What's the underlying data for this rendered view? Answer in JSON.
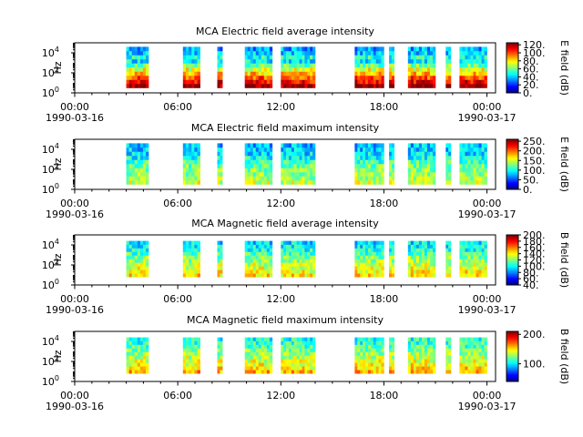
{
  "chart_data": [
    {
      "type": "heatmap",
      "title": "MCA  Electric field average intensity",
      "ylabel": "Hz",
      "yscale": "log",
      "ylim": [
        1,
        100000
      ],
      "yticks": [
        {
          "exp": "0",
          "v": 1
        },
        {
          "exp": "2",
          "v": 100
        },
        {
          "exp": "4",
          "v": 10000
        }
      ],
      "xlim": [
        0,
        24.5
      ],
      "xticks": [
        {
          "h": 0,
          "label": "00:00"
        },
        {
          "h": 6,
          "label": "06:00"
        },
        {
          "h": 12,
          "label": "12:00"
        },
        {
          "h": 18,
          "label": "18:00"
        },
        {
          "h": 24,
          "label": "00:00"
        }
      ],
      "xdates": [
        {
          "h": 0,
          "label": "1990-03-16"
        },
        {
          "h": 24,
          "label": "1990-03-17"
        }
      ],
      "colorbar": {
        "label": "E field (dB)",
        "min": 0,
        "max": 125,
        "ticks": [
          {
            "v": 0,
            "label": "0."
          },
          {
            "v": 20,
            "label": "20."
          },
          {
            "v": 40,
            "label": "40."
          },
          {
            "v": 60,
            "label": "60."
          },
          {
            "v": 80,
            "label": "80."
          },
          {
            "v": 100,
            "label": "100."
          },
          {
            "v": 120,
            "label": "120."
          }
        ]
      },
      "segments": [
        [
          3.0,
          4.3
        ],
        [
          6.3,
          7.3
        ],
        [
          8.3,
          8.6
        ],
        [
          9.9,
          11.5
        ],
        [
          12.0,
          14.0
        ],
        [
          16.3,
          18.0
        ],
        [
          18.3,
          18.6
        ],
        [
          19.4,
          21.0
        ],
        [
          21.6,
          21.9
        ],
        [
          22.4,
          24.0
        ]
      ],
      "freq_range": [
        0.5,
        4.6
      ],
      "level_profile": [
        125,
        110,
        100,
        85,
        75,
        60,
        45,
        50,
        40,
        35
      ]
    },
    {
      "type": "heatmap",
      "title": "MCA  Electric field maximum intensity",
      "ylabel": "Hz",
      "yscale": "log",
      "ylim": [
        1,
        100000
      ],
      "yticks": [
        {
          "exp": "0",
          "v": 1
        },
        {
          "exp": "2",
          "v": 100
        },
        {
          "exp": "4",
          "v": 10000
        }
      ],
      "xlim": [
        0,
        24.5
      ],
      "xticks": [
        {
          "h": 0,
          "label": "00:00"
        },
        {
          "h": 6,
          "label": "06:00"
        },
        {
          "h": 12,
          "label": "12:00"
        },
        {
          "h": 18,
          "label": "18:00"
        },
        {
          "h": 24,
          "label": "00:00"
        }
      ],
      "xdates": [
        {
          "h": 0,
          "label": "1990-03-16"
        },
        {
          "h": 24,
          "label": "1990-03-17"
        }
      ],
      "colorbar": {
        "label": "E field (dB)",
        "min": 0,
        "max": 260,
        "ticks": [
          {
            "v": 0,
            "label": "0."
          },
          {
            "v": 50,
            "label": "50."
          },
          {
            "v": 100,
            "label": "100."
          },
          {
            "v": 150,
            "label": "150."
          },
          {
            "v": 200,
            "label": "200."
          },
          {
            "v": 250,
            "label": "250."
          }
        ]
      },
      "segments": [
        [
          3.0,
          4.3
        ],
        [
          6.3,
          7.3
        ],
        [
          8.3,
          8.6
        ],
        [
          9.9,
          11.5
        ],
        [
          12.0,
          14.0
        ],
        [
          16.3,
          18.0
        ],
        [
          18.3,
          18.6
        ],
        [
          19.4,
          21.0
        ],
        [
          21.6,
          21.9
        ],
        [
          22.4,
          24.0
        ]
      ],
      "freq_range": [
        0.5,
        4.6
      ],
      "level_profile": [
        150,
        140,
        135,
        130,
        125,
        115,
        100,
        90,
        85,
        80
      ]
    },
    {
      "type": "heatmap",
      "title": "MCA  Magnetic field average intensity",
      "ylabel": "Hz",
      "yscale": "log",
      "ylim": [
        1,
        100000
      ],
      "yticks": [
        {
          "exp": "0",
          "v": 1
        },
        {
          "exp": "2",
          "v": 100
        },
        {
          "exp": "4",
          "v": 10000
        }
      ],
      "xlim": [
        0,
        24.5
      ],
      "xticks": [
        {
          "h": 0,
          "label": "00:00"
        },
        {
          "h": 6,
          "label": "06:00"
        },
        {
          "h": 12,
          "label": "12:00"
        },
        {
          "h": 18,
          "label": "18:00"
        },
        {
          "h": 24,
          "label": "00:00"
        }
      ],
      "xdates": [
        {
          "h": 0,
          "label": "1990-03-16"
        },
        {
          "h": 24,
          "label": "1990-03-17"
        }
      ],
      "colorbar": {
        "label": "B field (dB)",
        "min": 40,
        "max": 200,
        "ticks": [
          {
            "v": 40,
            "label": "40."
          },
          {
            "v": 60,
            "label": "60."
          },
          {
            "v": 80,
            "label": "80."
          },
          {
            "v": 100,
            "label": "100."
          },
          {
            "v": 120,
            "label": "120."
          },
          {
            "v": 140,
            "label": "140."
          },
          {
            "v": 160,
            "label": "160."
          },
          {
            "v": 180,
            "label": "180."
          },
          {
            "v": 200,
            "label": "200."
          }
        ]
      },
      "segments": [
        [
          3.0,
          4.3
        ],
        [
          6.3,
          7.3
        ],
        [
          8.3,
          8.6
        ],
        [
          9.9,
          11.5
        ],
        [
          12.0,
          14.0
        ],
        [
          16.3,
          18.0
        ],
        [
          18.3,
          18.6
        ],
        [
          19.4,
          21.0
        ],
        [
          21.6,
          21.9
        ],
        [
          22.4,
          24.0
        ]
      ],
      "freq_range": [
        0.8,
        4.4
      ],
      "level_profile": [
        145,
        140,
        135,
        130,
        125,
        120,
        112,
        105,
        100,
        95
      ]
    },
    {
      "type": "heatmap",
      "title": "MCA  Magnetic field maximum intensity",
      "ylabel": "Hz",
      "yscale": "log",
      "ylim": [
        1,
        100000
      ],
      "yticks": [
        {
          "exp": "0",
          "v": 1
        },
        {
          "exp": "2",
          "v": 100
        },
        {
          "exp": "4",
          "v": 10000
        }
      ],
      "xlim": [
        0,
        24.5
      ],
      "xticks": [
        {
          "h": 0,
          "label": "00:00"
        },
        {
          "h": 6,
          "label": "06:00"
        },
        {
          "h": 12,
          "label": "12:00"
        },
        {
          "h": 18,
          "label": "18:00"
        },
        {
          "h": 24,
          "label": "00:00"
        }
      ],
      "xdates": [
        {
          "h": 0,
          "label": "1990-03-16"
        },
        {
          "h": 24,
          "label": "1990-03-17"
        }
      ],
      "colorbar": {
        "label": "B field (dB)",
        "min": 40,
        "max": 210,
        "ticks": [
          {
            "v": 100,
            "label": "100."
          },
          {
            "v": 200,
            "label": "200."
          }
        ]
      },
      "segments": [
        [
          3.0,
          4.3
        ],
        [
          6.3,
          7.3
        ],
        [
          8.3,
          8.6
        ],
        [
          9.9,
          11.5
        ],
        [
          12.0,
          14.0
        ],
        [
          16.3,
          18.0
        ],
        [
          18.3,
          18.6
        ],
        [
          19.4,
          21.0
        ],
        [
          21.6,
          21.9
        ],
        [
          22.4,
          24.0
        ]
      ],
      "freq_range": [
        0.8,
        4.4
      ],
      "level_profile": [
        160,
        150,
        145,
        140,
        135,
        130,
        125,
        118,
        112,
        108
      ]
    }
  ]
}
